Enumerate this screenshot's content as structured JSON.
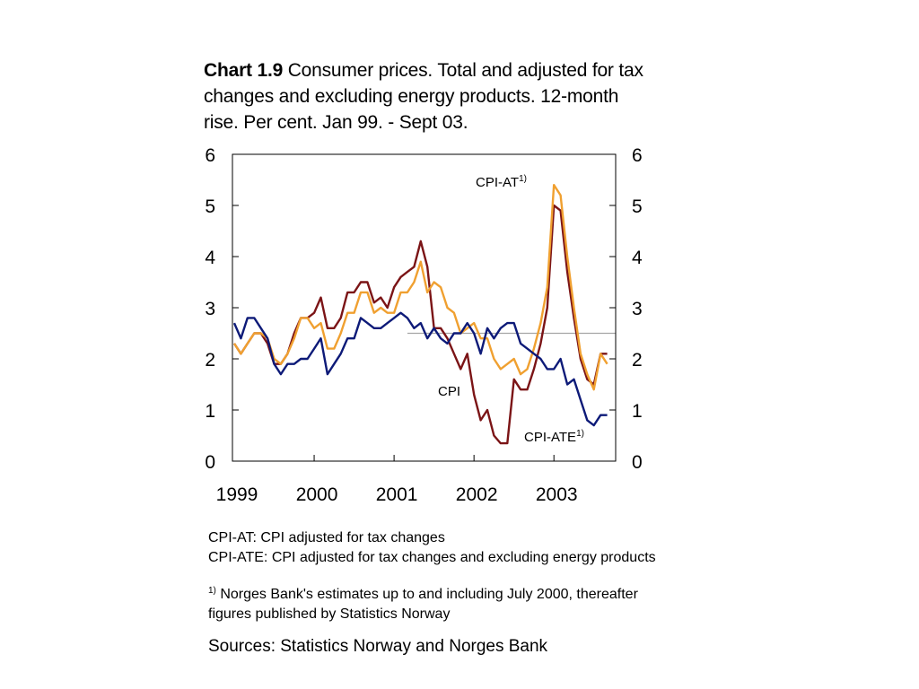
{
  "chart_data": {
    "type": "line",
    "title_bold": "Chart 1.9",
    "title_rest": " Consumer prices. Total and adjusted for tax changes and excluding energy products. 12-month rise. Per cent. Jan 99. - Sept  03.",
    "x_start": "1999-01",
    "x_end": "2003-09",
    "xtick_labels": [
      "1999",
      "2000",
      "2001",
      "2002",
      "2003"
    ],
    "ylim": [
      0,
      6
    ],
    "yticks_left": [
      "0",
      "1",
      "2",
      "3",
      "4",
      "5",
      "6"
    ],
    "yticks_right": [
      "0",
      "1",
      "2",
      "3",
      "4",
      "5",
      "6"
    ],
    "reference_line": {
      "value": 2.5,
      "from": "2001-03",
      "to": "2003-09",
      "color": "#a6a6a6"
    },
    "series": [
      {
        "name": "CPI",
        "label_text": "CPI",
        "label_sup": "",
        "color": "#7b1416",
        "values": [
          2.3,
          2.1,
          2.3,
          2.5,
          2.5,
          2.3,
          1.9,
          1.9,
          2.1,
          2.5,
          2.8,
          2.8,
          2.9,
          3.2,
          2.6,
          2.6,
          2.8,
          3.3,
          3.3,
          3.5,
          3.5,
          3.1,
          3.2,
          3.0,
          3.4,
          3.6,
          3.7,
          3.8,
          4.3,
          3.8,
          2.6,
          2.6,
          2.4,
          2.1,
          1.8,
          2.1,
          1.3,
          0.8,
          1.0,
          0.5,
          0.35,
          0.35,
          1.6,
          1.4,
          1.4,
          1.8,
          2.3,
          3.0,
          5.0,
          4.9,
          3.7,
          2.8,
          2.0,
          1.6,
          1.5,
          2.1,
          2.1
        ]
      },
      {
        "name": "CPI-AT",
        "label_text": "CPI-AT",
        "label_sup": "1)",
        "color": "#f0a030",
        "values": [
          2.3,
          2.1,
          2.3,
          2.5,
          2.5,
          2.4,
          2.0,
          1.9,
          2.1,
          2.4,
          2.8,
          2.8,
          2.6,
          2.7,
          2.2,
          2.2,
          2.5,
          2.9,
          2.9,
          3.3,
          3.3,
          2.9,
          3.0,
          2.9,
          2.9,
          3.3,
          3.3,
          3.5,
          3.9,
          3.3,
          3.5,
          3.4,
          3.0,
          2.9,
          2.5,
          2.6,
          2.7,
          2.4,
          2.4,
          2.0,
          1.8,
          1.9,
          2.0,
          1.7,
          1.8,
          2.2,
          2.7,
          3.4,
          5.4,
          5.2,
          4.0,
          3.0,
          2.1,
          1.7,
          1.4,
          2.1,
          1.9
        ]
      },
      {
        "name": "CPI-ATE",
        "label_text": "CPI-ATE",
        "label_sup": "1)",
        "color": "#0d1a78",
        "values": [
          2.7,
          2.4,
          2.8,
          2.8,
          2.6,
          2.4,
          1.9,
          1.7,
          1.9,
          1.9,
          2.0,
          2.0,
          2.2,
          2.4,
          1.7,
          1.9,
          2.1,
          2.4,
          2.4,
          2.8,
          2.7,
          2.6,
          2.6,
          2.7,
          2.8,
          2.9,
          2.8,
          2.6,
          2.7,
          2.4,
          2.6,
          2.4,
          2.3,
          2.5,
          2.5,
          2.7,
          2.5,
          2.1,
          2.6,
          2.4,
          2.6,
          2.7,
          2.7,
          2.3,
          2.2,
          2.1,
          2.0,
          1.8,
          1.8,
          2.0,
          1.5,
          1.6,
          1.2,
          0.8,
          0.7,
          0.9,
          0.9
        ]
      }
    ]
  },
  "notes": {
    "def_at": "CPI-AT: CPI adjusted for tax changes",
    "def_ate": "CPI-ATE: CPI adjusted for tax changes and excluding energy products",
    "footnote_mark": "1)",
    "footnote_text": " Norges Bank's estimates up to and including July 2000, thereafter figures published by Statistics Norway",
    "sources": "Sources: Statistics Norway and Norges Bank"
  }
}
